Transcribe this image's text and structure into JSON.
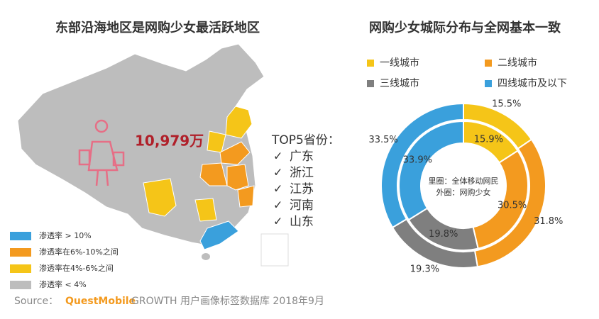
{
  "map": {
    "title": "东部沿海地区是网购少女最活跃地区",
    "total": "10,979万",
    "top5_title": "TOP5省份：",
    "top5": [
      "广东",
      "浙江",
      "江苏",
      "河南",
      "山东"
    ],
    "legend": [
      {
        "label": "渗透率 > 10%",
        "color": "#3aa0dc"
      },
      {
        "label": "渗透率在6%-10%之间",
        "color": "#f39a1f"
      },
      {
        "label": "渗透率在4%-6%之间",
        "color": "#f5c518"
      },
      {
        "label": "渗透率 < 4%",
        "color": "#bdbdbd"
      }
    ]
  },
  "chart_data": {
    "type": "donut",
    "title": "网购少女城际分布与全网基本一致",
    "categories": [
      "一线城市",
      "二线城市",
      "三线城市",
      "四线城市及以下"
    ],
    "colors": [
      "#f5c518",
      "#f39a1f",
      "#7f7f7f",
      "#3aa0dc"
    ],
    "series": [
      {
        "name": "外圈：网购少女",
        "values": [
          15.5,
          31.8,
          19.3,
          33.5
        ],
        "value_labels": [
          "15.5%",
          "31.8%",
          "19.3%",
          "33.5%"
        ]
      },
      {
        "name": "里圈：全体移动网民",
        "values": [
          15.9,
          30.5,
          19.8,
          33.9
        ],
        "value_labels": [
          "15.9%",
          "30.5%",
          "19.8%",
          "33.9%"
        ]
      }
    ]
  },
  "source": {
    "label": "Source：",
    "brand": "QuestMobile",
    "text": "GROWTH 用户画像标签数据库 2018年9月"
  }
}
